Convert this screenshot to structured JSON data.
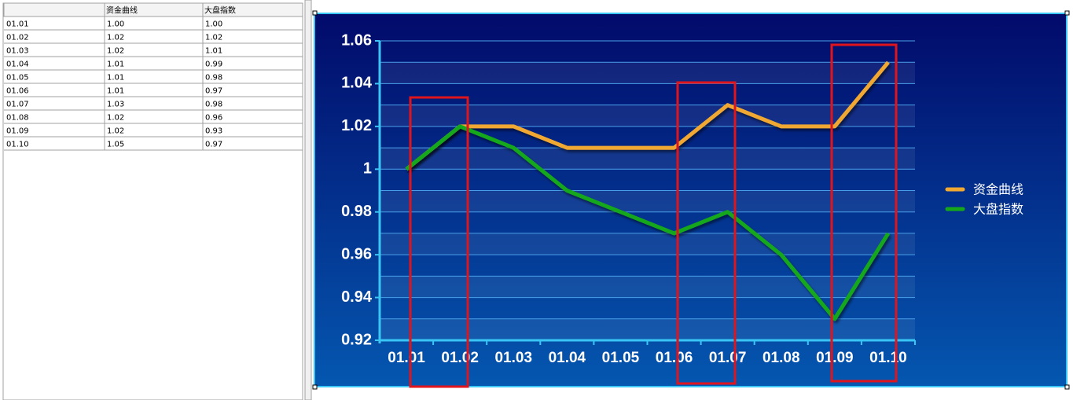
{
  "table": {
    "headers": [
      "资金曲线",
      "大盘指数"
    ],
    "rows": [
      [
        "01.01",
        "1.00",
        "1.00"
      ],
      [
        "01.02",
        "1.02",
        "1.02"
      ],
      [
        "01.03",
        "1.02",
        "1.01"
      ],
      [
        "01.04",
        "1.01",
        "0.99"
      ],
      [
        "01.05",
        "1.01",
        "0.98"
      ],
      [
        "01.06",
        "1.01",
        "0.97"
      ],
      [
        "01.07",
        "1.03",
        "0.98"
      ],
      [
        "01.08",
        "1.02",
        "0.96"
      ],
      [
        "01.09",
        "1.02",
        "0.93"
      ],
      [
        "01.10",
        "1.05",
        "0.97"
      ]
    ]
  },
  "chart_data": {
    "type": "line",
    "categories": [
      "01.01",
      "01.02",
      "01.03",
      "01.04",
      "01.05",
      "01.06",
      "01.07",
      "01.08",
      "01.09",
      "01.10"
    ],
    "series": [
      {
        "name": "资金曲线",
        "color": "#f0a830",
        "values": [
          1.0,
          1.02,
          1.02,
          1.01,
          1.01,
          1.01,
          1.03,
          1.02,
          1.02,
          1.05
        ]
      },
      {
        "name": "大盘指数",
        "color": "#17a81a",
        "values": [
          1.0,
          1.02,
          1.01,
          0.99,
          0.98,
          0.97,
          0.98,
          0.96,
          0.93,
          0.97
        ]
      }
    ],
    "ylim": [
      0.92,
      1.06
    ],
    "yticks": [
      0.92,
      0.94,
      0.96,
      0.98,
      1,
      1.02,
      1.04,
      1.06
    ],
    "grid": true,
    "legend": "right"
  }
}
